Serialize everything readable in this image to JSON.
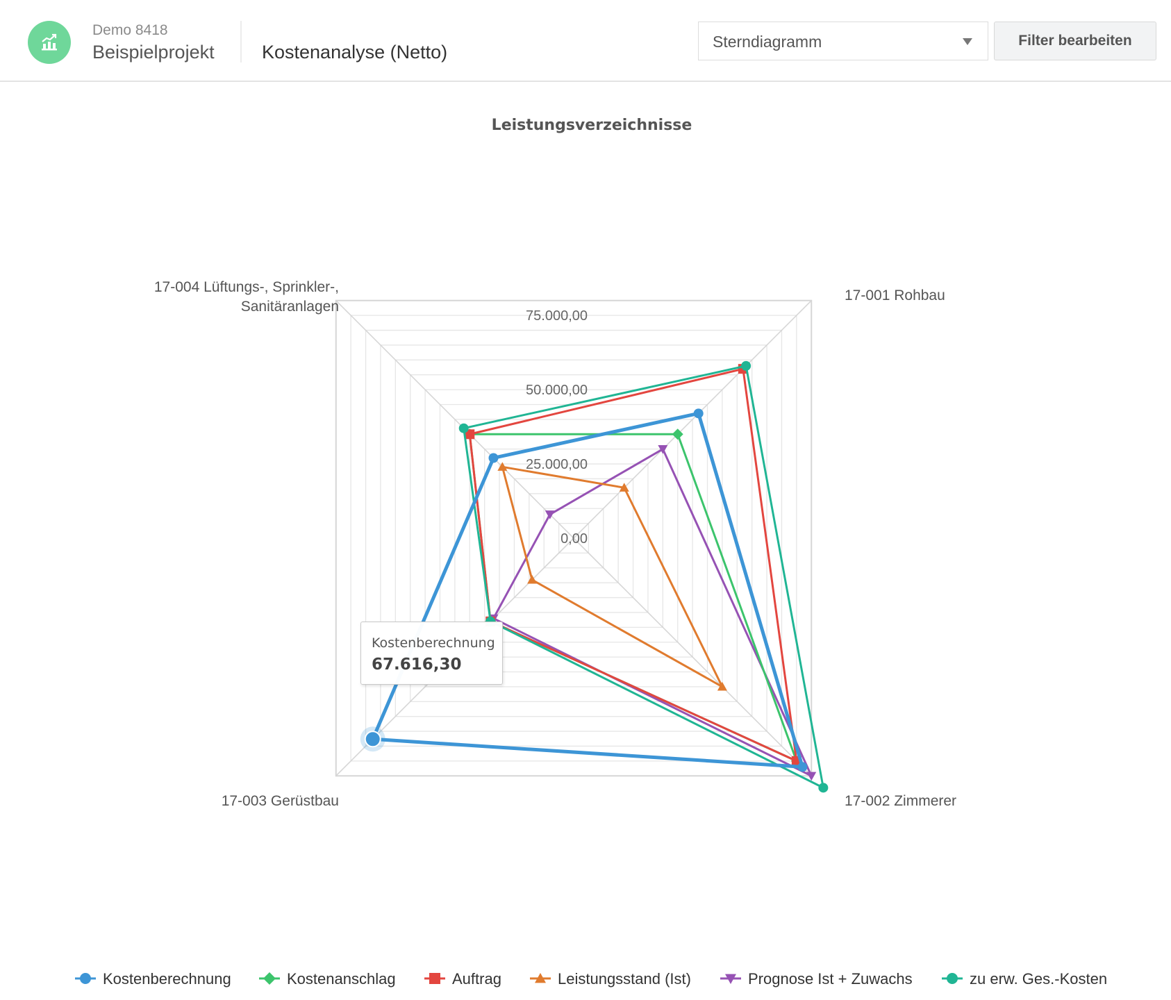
{
  "header": {
    "logo_icon": "chart-growth-icon",
    "logo_color": "#6fd79a",
    "project_code": "Demo 8418",
    "project_name": "Beispielprojekt",
    "page_title": "Kostenanalyse (Netto)",
    "chart_type_select": {
      "value": "Sterndiagramm",
      "icon": "caret-down-icon"
    },
    "filter_button": "Filter bearbeiten"
  },
  "chart_data": {
    "type": "radar",
    "title": "Leistungsverzeichnisse",
    "categories": [
      "17-001 Rohbau",
      "17-002 Zimmerer",
      "17-003 Gerüstbau",
      "17-004 Lüftungs-, Sprinkler-, Sanitäranlagen"
    ],
    "axis_tick_labels": [
      "0,00",
      "25.000,00",
      "50.000,00",
      "75.000,00"
    ],
    "axis_range": [
      0,
      80000
    ],
    "grid": "polygon",
    "legend_position": "bottom",
    "series": [
      {
        "name": "Kostenberechnung",
        "color": "#3d95d6",
        "marker": "circle",
        "values": [
          42000,
          77000,
          67616.3,
          27000
        ]
      },
      {
        "name": "Kostenanschlag",
        "color": "#3cc46c",
        "marker": "diamond",
        "values": [
          35000,
          75000,
          28000,
          35000
        ]
      },
      {
        "name": "Auftrag",
        "color": "#e3463f",
        "marker": "square",
        "values": [
          57000,
          75000,
          28000,
          35000
        ]
      },
      {
        "name": "Leistungsstand (Ist)",
        "color": "#e07b2e",
        "marker": "triangle",
        "values": [
          17000,
          50000,
          14000,
          24000
        ]
      },
      {
        "name": "Prognose Ist + Zuwachs",
        "color": "#9652b4",
        "marker": "triangle-down",
        "values": [
          30000,
          80000,
          27000,
          8000
        ]
      },
      {
        "name": "zu erw. Ges.-Kosten",
        "color": "#20b594",
        "marker": "circle",
        "values": [
          58000,
          84000,
          28000,
          37000
        ]
      }
    ],
    "tooltip": {
      "series": "Kostenberechnung",
      "value": "67.616,30"
    }
  }
}
